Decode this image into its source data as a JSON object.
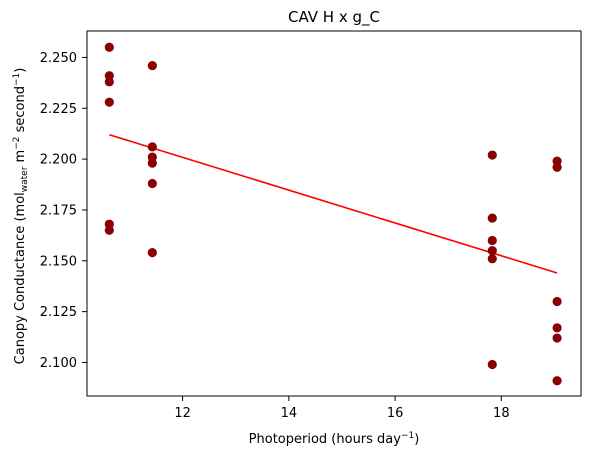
{
  "chart_data": {
    "type": "scatter",
    "title": "CAV H x g_C",
    "xlabel": "Photoperiod (hours day",
    "xlabel_sup": "−1",
    "xlabel_end": ")",
    "ylabel_parts": [
      {
        "text": "Canopy Conductance (mol"
      },
      {
        "text": "water",
        "sub": true
      },
      {
        "text": " m"
      },
      {
        "text": "−2",
        "sup": true
      },
      {
        "text": " second"
      },
      {
        "text": "−1",
        "sup": true
      },
      {
        "text": ")"
      }
    ],
    "xlim": [
      10.2,
      19.5
    ],
    "ylim": [
      2.0835,
      2.263
    ],
    "xticks": [
      12,
      14,
      16,
      18
    ],
    "xtick_labels": [
      "12",
      "14",
      "16",
      "18"
    ],
    "yticks": [
      2.1,
      2.125,
      2.15,
      2.175,
      2.2,
      2.225,
      2.25
    ],
    "ytick_labels": [
      "2.100",
      "2.125",
      "2.150",
      "2.175",
      "2.200",
      "2.225",
      "2.250"
    ],
    "grid": false,
    "point_color": "#8b0000",
    "line_color": "#ff0000",
    "points": [
      {
        "x": 10.62,
        "y": 2.255
      },
      {
        "x": 10.62,
        "y": 2.241
      },
      {
        "x": 10.62,
        "y": 2.238
      },
      {
        "x": 10.62,
        "y": 2.228
      },
      {
        "x": 10.62,
        "y": 2.168
      },
      {
        "x": 10.62,
        "y": 2.165
      },
      {
        "x": 11.43,
        "y": 2.246
      },
      {
        "x": 11.43,
        "y": 2.206
      },
      {
        "x": 11.43,
        "y": 2.201
      },
      {
        "x": 11.43,
        "y": 2.198
      },
      {
        "x": 11.43,
        "y": 2.188
      },
      {
        "x": 11.43,
        "y": 2.154
      },
      {
        "x": 17.83,
        "y": 2.202
      },
      {
        "x": 17.83,
        "y": 2.171
      },
      {
        "x": 17.83,
        "y": 2.16
      },
      {
        "x": 17.83,
        "y": 2.155
      },
      {
        "x": 17.83,
        "y": 2.151
      },
      {
        "x": 17.83,
        "y": 2.099
      },
      {
        "x": 19.05,
        "y": 2.199
      },
      {
        "x": 19.05,
        "y": 2.196
      },
      {
        "x": 19.05,
        "y": 2.13
      },
      {
        "x": 19.05,
        "y": 2.117
      },
      {
        "x": 19.05,
        "y": 2.112
      },
      {
        "x": 19.05,
        "y": 2.091
      }
    ],
    "trendline": {
      "x": [
        10.62,
        19.05
      ],
      "y": [
        2.212,
        2.144
      ]
    }
  }
}
